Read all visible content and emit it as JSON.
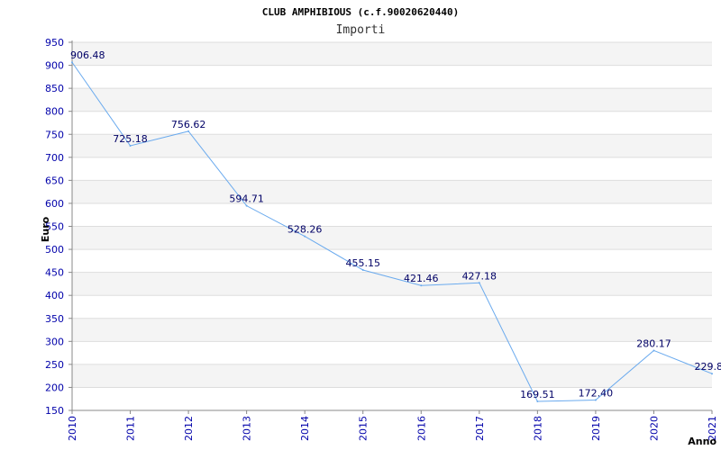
{
  "chart_data": {
    "type": "line",
    "title": "CLUB AMPHIBIOUS (c.f.90020620440)",
    "subtitle": "Importi",
    "xlabel": "Anno",
    "ylabel": "Euro",
    "x": [
      "2010",
      "2011",
      "2012",
      "2013",
      "2014",
      "2015",
      "2016",
      "2017",
      "2018",
      "2019",
      "2020",
      "2021"
    ],
    "values": [
      906.48,
      725.18,
      756.62,
      594.71,
      528.26,
      455.15,
      421.46,
      427.18,
      169.51,
      172.4,
      280.17,
      229.8
    ],
    "value_labels": [
      "906.48",
      "725.18",
      "756.62",
      "594.71",
      "528.26",
      "455.15",
      "421.46",
      "427.18",
      "169.51",
      "172.40",
      "280.17",
      "229.8"
    ],
    "ylim": [
      150,
      950
    ],
    "yticks": [
      150,
      200,
      250,
      300,
      350,
      400,
      450,
      500,
      550,
      600,
      650,
      700,
      750,
      800,
      850,
      900,
      950
    ],
    "grid": true,
    "legend": "none",
    "colors": {
      "line": "#6aaaee",
      "band_alt": "#f4f4f4",
      "band_base": "#ffffff",
      "grid": "#dddddd",
      "axis": "#888888",
      "tick_text": "#0000aa",
      "value_text": "#000066"
    }
  }
}
